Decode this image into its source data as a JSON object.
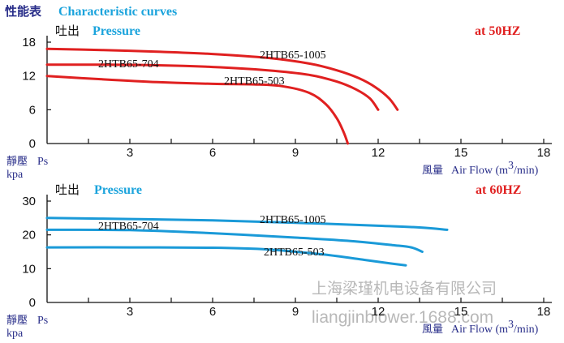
{
  "title": {
    "cn": "性能表",
    "en": "Characteristic curves"
  },
  "watermark": {
    "cn": "上海梁瑾机电设备有限公司",
    "en": "liangjinblower.1688.com"
  },
  "chart_data": [
    {
      "type": "line",
      "frequency_label": "at 50HZ",
      "ylabel_top_cn": "吐出",
      "ylabel_top_en": "Pressure",
      "ylabel_cn": "靜壓",
      "ylabel_en": "Ps",
      "yunit": "kpa",
      "xlabel_cn": "風量",
      "xlabel_en": "Air Flow (m",
      "xlabel_sup": "3",
      "xlabel_tail": "/min)",
      "xlim": [
        0,
        19
      ],
      "ylim": [
        0,
        18
      ],
      "xticks": [
        "3",
        "6",
        "9",
        "12",
        "15",
        "18"
      ],
      "yticks": [
        "0",
        "6",
        "12",
        "18"
      ],
      "grid": false,
      "color": "#e02020",
      "series": [
        {
          "name": "2HTB65-1005",
          "x": [
            0,
            2,
            4,
            6,
            8,
            9.5,
            10.5,
            11.3,
            11.9,
            12.4,
            12.7
          ],
          "y": [
            16.8,
            16.6,
            16.3,
            15.9,
            15.2,
            14.2,
            13.0,
            11.6,
            10.0,
            8.0,
            6.0
          ]
        },
        {
          "name": "2HTB65-704",
          "x": [
            0,
            2,
            4,
            6,
            8,
            9.5,
            10.5,
            11.2,
            11.7,
            12.0
          ],
          "y": [
            14.0,
            14.0,
            13.9,
            13.6,
            13.0,
            12.2,
            11.0,
            9.6,
            8.0,
            6.0
          ]
        },
        {
          "name": "2HTB65-503",
          "x": [
            0,
            2,
            4,
            6,
            7.5,
            8.5,
            9.5,
            10.1,
            10.5,
            10.75,
            10.9
          ],
          "y": [
            12.0,
            11.4,
            10.9,
            10.6,
            10.5,
            10.2,
            9.0,
            7.0,
            4.5,
            2.0,
            0.0
          ]
        }
      ],
      "labels": [
        "2HTB65-1005",
        "2HTB65-704",
        "2HTB65-503"
      ]
    },
    {
      "type": "line",
      "frequency_label": "at 60HZ",
      "ylabel_top_cn": "吐出",
      "ylabel_top_en": "Pressure",
      "ylabel_cn": "靜壓",
      "ylabel_en": "Ps",
      "yunit": "kpa",
      "xlabel_cn": "風量",
      "xlabel_en": "Air Flow (m",
      "xlabel_sup": "3",
      "xlabel_tail": "/min)",
      "xlim": [
        0,
        19
      ],
      "ylim": [
        0,
        30
      ],
      "xticks": [
        "3",
        "6",
        "9",
        "12",
        "15",
        "18"
      ],
      "yticks": [
        "0",
        "10",
        "20",
        "30"
      ],
      "grid": false,
      "color": "#1a9ad8",
      "series": [
        {
          "name": "2HTB65-1005",
          "x": [
            0,
            3,
            6,
            9,
            12,
            13.5,
            14.5
          ],
          "y": [
            25.0,
            24.7,
            24.3,
            23.6,
            22.7,
            22.2,
            21.5
          ]
        },
        {
          "name": "2HTB65-704",
          "x": [
            0,
            3,
            6,
            9,
            11,
            12.5,
            13.2,
            13.6
          ],
          "y": [
            21.5,
            21.4,
            20.5,
            19.2,
            18.2,
            17.0,
            16.3,
            15.0
          ]
        },
        {
          "name": "2HTB65-503",
          "x": [
            0,
            3,
            6,
            8,
            10,
            11.5,
            12.5,
            13.0
          ],
          "y": [
            16.3,
            16.3,
            16.2,
            15.7,
            14.2,
            12.6,
            11.5,
            11.0
          ]
        }
      ],
      "labels": [
        "2HTB65-1005",
        "2HTB65-704",
        "2HTB65-503"
      ]
    }
  ]
}
